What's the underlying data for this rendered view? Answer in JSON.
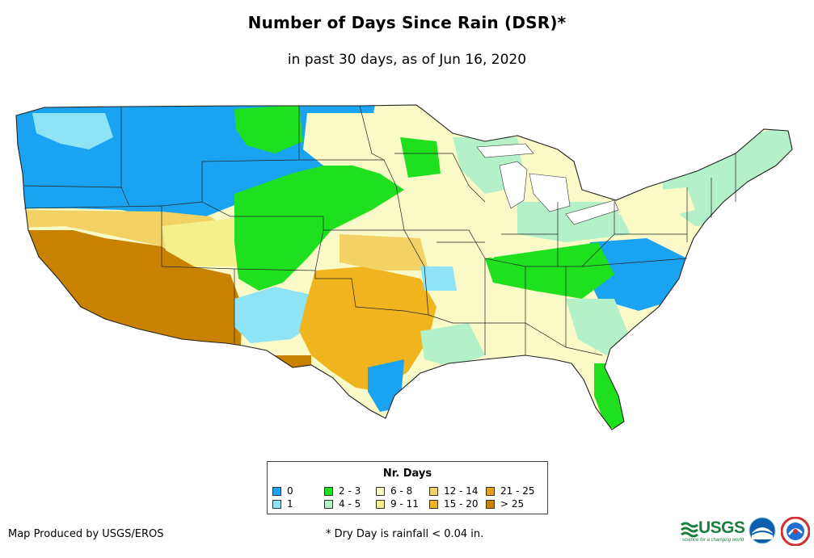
{
  "title": "Number of Days Since Rain (DSR)*",
  "subtitle": "in past 30 days, as of Jun 16, 2020",
  "legend": {
    "title": "Nr. Days",
    "items": [
      {
        "label": "0",
        "color": "#1aa3f0"
      },
      {
        "label": "1",
        "color": "#8ee3f5"
      },
      {
        "label": "2 - 3",
        "color": "#1ee01e"
      },
      {
        "label": "4 - 5",
        "color": "#b4f0c8"
      },
      {
        "label": "6 - 8",
        "color": "#fafac8"
      },
      {
        "label": "9 - 11",
        "color": "#f5f08c"
      },
      {
        "label": "12 - 14",
        "color": "#f2d264"
      },
      {
        "label": "15 - 20",
        "color": "#f0b41e"
      },
      {
        "label": "21 - 25",
        "color": "#e6a01e"
      },
      {
        "label": "> 25",
        "color": "#c88200"
      }
    ]
  },
  "credit": "Map Produced by USGS/EROS",
  "footnote": "* Dry Day is rainfall < 0.04 in.",
  "logos": {
    "usgs": "USGS",
    "usgs_tagline": "science for a changing world",
    "noaa": "noaa-logo-icon",
    "nws": "nws-logo-icon"
  }
}
